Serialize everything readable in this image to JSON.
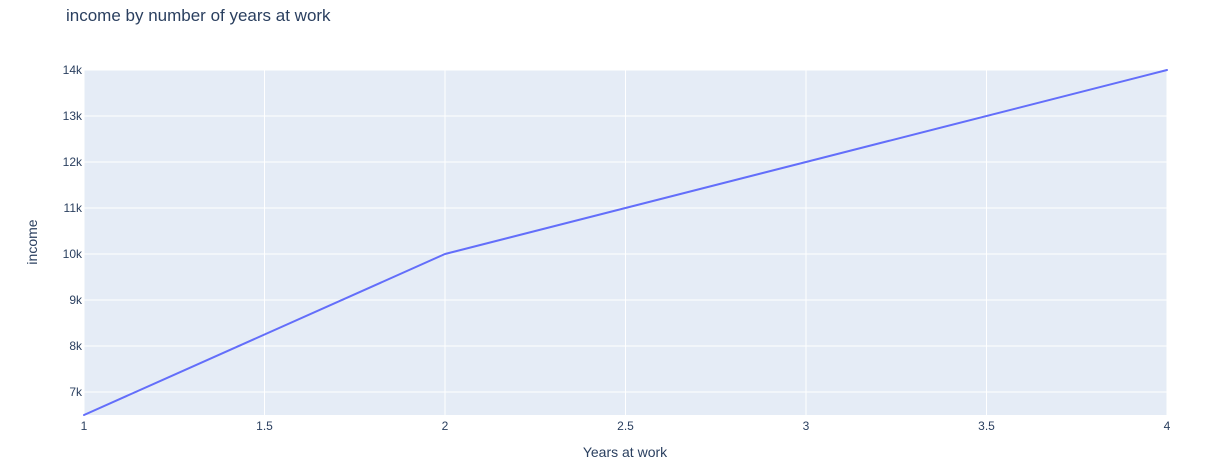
{
  "chart_data": {
    "type": "line",
    "title": "income by number of years at work",
    "xlabel": "Years at work",
    "ylabel": "income",
    "xlim": [
      1,
      4
    ],
    "ylim": [
      6500,
      14000
    ],
    "x_ticks": [
      1,
      1.5,
      2,
      2.5,
      3,
      3.5,
      4
    ],
    "x_tick_labels": [
      "1",
      "1.5",
      "2",
      "2.5",
      "3",
      "3.5",
      "4"
    ],
    "y_ticks": [
      7000,
      8000,
      9000,
      10000,
      11000,
      12000,
      13000,
      14000
    ],
    "y_tick_labels": [
      "7k",
      "8k",
      "9k",
      "10k",
      "11k",
      "12k",
      "13k",
      "14k"
    ],
    "grid": true,
    "background_color": "#e5ecf6",
    "grid_color": "#ffffff",
    "series": [
      {
        "color": "#636efa",
        "x": [
          1,
          2,
          3,
          4
        ],
        "y": [
          6500,
          10000,
          12000,
          14000
        ]
      }
    ]
  }
}
